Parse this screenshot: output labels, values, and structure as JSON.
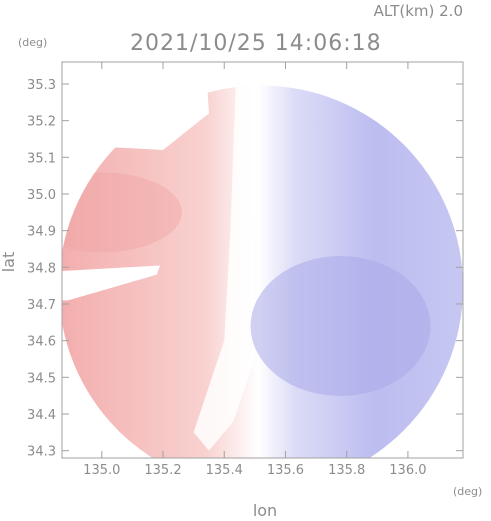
{
  "chart_data": {
    "type": "heatmap",
    "title": "2021/10/25 14:06:18",
    "altitude_label": "ALT(km) 2.0",
    "xlabel": "lon",
    "ylabel": "lat",
    "x_unit": "(deg)",
    "y_unit": "(deg)",
    "xlim": [
      134.87,
      136.18
    ],
    "ylim": [
      34.28,
      35.36
    ],
    "x_ticks": [
      135.0,
      135.2,
      135.4,
      135.6,
      135.8,
      136.0
    ],
    "x_tick_labels": [
      "135.0",
      "135.2",
      "135.4",
      "135.6",
      "135.8",
      "136.0"
    ],
    "y_ticks": [
      34.3,
      34.4,
      34.5,
      34.6,
      34.7,
      34.8,
      34.9,
      35.0,
      35.1,
      35.2,
      35.3
    ],
    "y_tick_labels": [
      "34.3",
      "34.4",
      "34.5",
      "34.6",
      "34.7",
      "34.8",
      "34.9",
      "35.0",
      "35.1",
      "35.2",
      "35.3"
    ],
    "grid": false,
    "legend": "none",
    "radar_center": [
      135.52,
      34.745
    ],
    "radar_radius_lon": 0.66,
    "colors": {
      "positive": "#f4b6b4",
      "negative": "#b7b8ef",
      "near_zero": "#ffffff",
      "axis": "#a0a0a0",
      "text": "#8c8c8c"
    }
  }
}
